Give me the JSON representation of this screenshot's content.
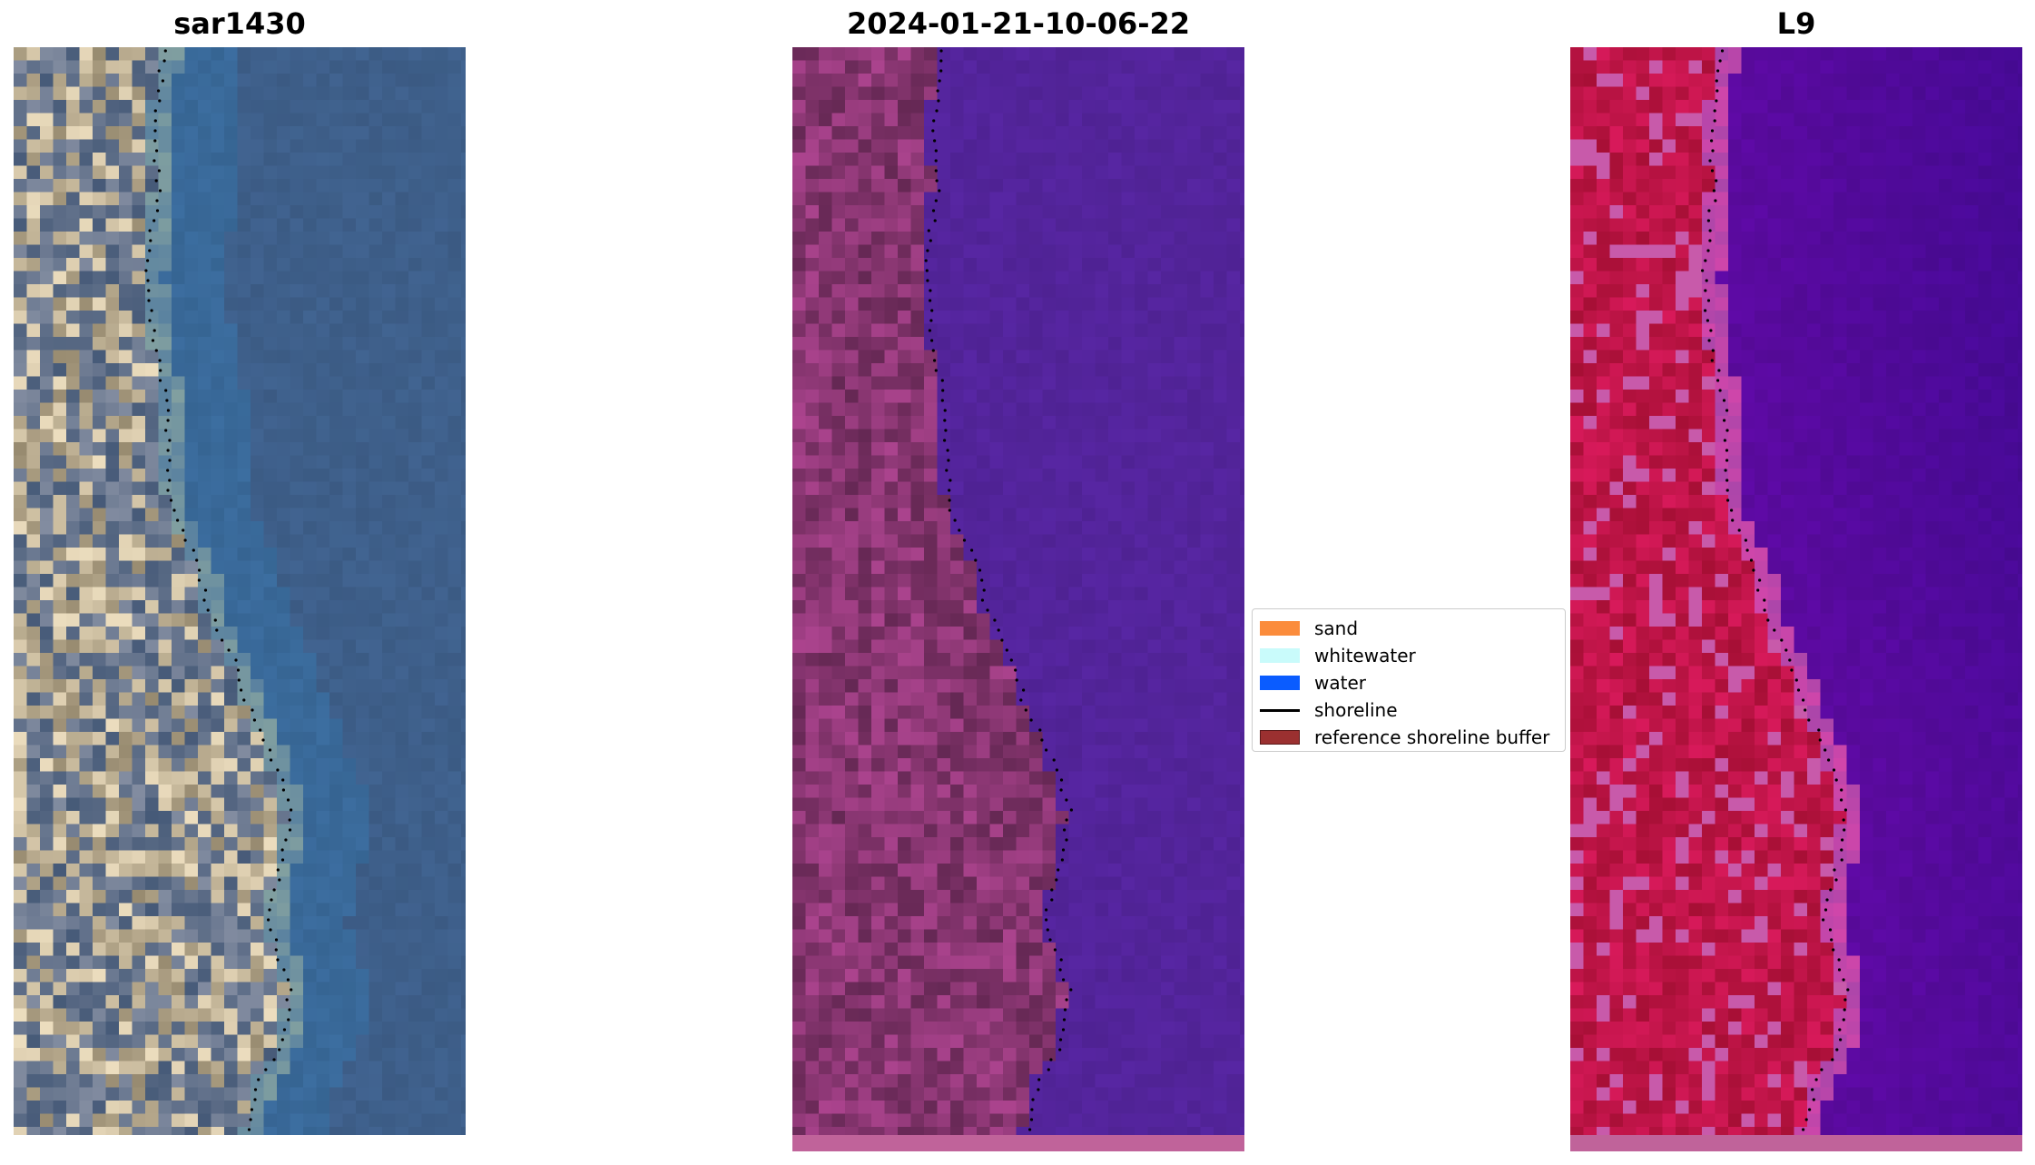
{
  "panels": [
    {
      "title": "sar1430",
      "type": "rgb"
    },
    {
      "title": "2024-01-21-10-06-22",
      "type": "classified"
    },
    {
      "title": "L9",
      "type": "falsecolor"
    }
  ],
  "legend": {
    "items": [
      {
        "label": "sand",
        "color": "#fb8c3c",
        "kind": "patch"
      },
      {
        "label": "whitewater",
        "color": "#c9fbfb",
        "kind": "patch"
      },
      {
        "label": "water",
        "color": "#0a5cff",
        "kind": "patch"
      },
      {
        "label": "shoreline",
        "color": "#000000",
        "kind": "line"
      },
      {
        "label": "reference shoreline buffer",
        "color": "#9b3030",
        "kind": "patch"
      }
    ]
  },
  "colors": {
    "rgb_water": "#3e5f8a",
    "rgb_land": "#a9a59c",
    "classified_water": "#53249b",
    "classified_land": "#8c3a74",
    "falsecolor_water": "#5c0aa0",
    "falsecolor_land": "#c4154a",
    "bottom_strip": "#c0639a"
  }
}
